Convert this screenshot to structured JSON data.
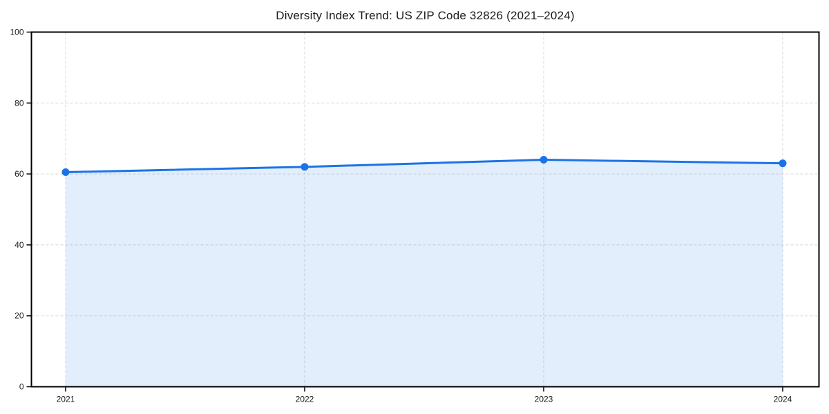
{
  "chart_data": {
    "type": "area",
    "title": "Diversity Index Trend: US ZIP Code 32826 (2021–2024)",
    "x": [
      "2021",
      "2022",
      "2023",
      "2024"
    ],
    "series": [
      {
        "name": "Diversity Index",
        "values": [
          60.5,
          62,
          64,
          63
        ]
      }
    ],
    "xlabel": "",
    "ylabel": "",
    "ylim": [
      0,
      100
    ],
    "yticks": [
      0,
      20,
      40,
      60,
      80,
      100
    ],
    "grid": true,
    "grid_style": "dashed",
    "legend": false,
    "markers": true,
    "colors": {
      "line": "#1a73e8",
      "marker": "#1a73e8",
      "fill": "rgba(26,115,232,0.12)",
      "grid": "#dedede",
      "spine": "#000000",
      "tick": "#000000",
      "text": "#1a1a1a",
      "background": "#ffffff"
    }
  }
}
